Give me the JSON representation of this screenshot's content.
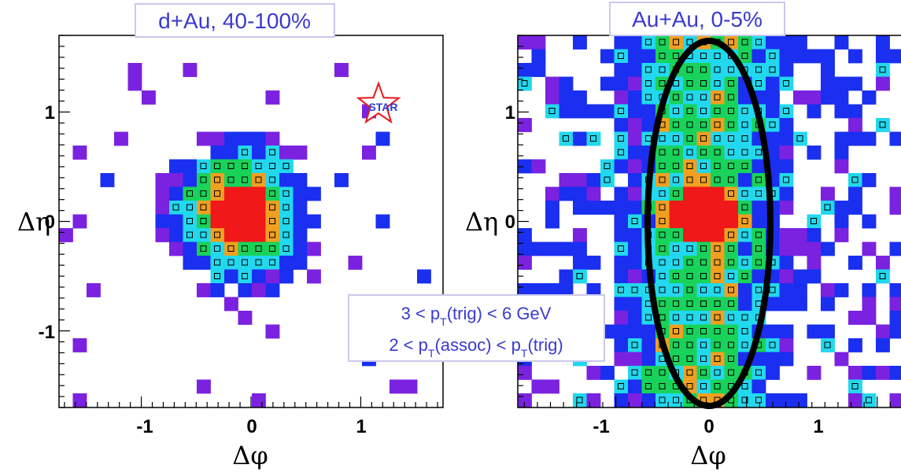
{
  "chart_data": [
    {
      "type": "heatmap",
      "title": "d+Au, 40-100%",
      "xlabel": "Δφ",
      "ylabel": "Δη",
      "xlim": [
        -1.75,
        1.75
      ],
      "ylim": [
        -1.7,
        1.7
      ],
      "xticks": [
        "-1",
        "0",
        "1"
      ],
      "yticks": [
        "-1",
        "0",
        "1"
      ],
      "logo": "STAR",
      "colors": [
        "#7a22e0",
        "#1a2ff0",
        "#22d8ee",
        "#19d25a",
        "#f0a020",
        "#f01818"
      ]
    },
    {
      "type": "heatmap",
      "title": "Au+Au, 0-5%",
      "xlabel": "Δφ",
      "ylabel": "Δη",
      "xlim": [
        -1.75,
        1.2
      ],
      "ylim": [
        -1.7,
        1.7
      ],
      "xticks": [
        "-1",
        "0",
        "1"
      ],
      "yticks": [
        "1",
        "0",
        "-1"
      ],
      "highlight": "ellipse",
      "colors": [
        "#7a22e0",
        "#1a2ff0",
        "#22d8ee",
        "#19d25a",
        "#f0a020",
        "#f01818"
      ]
    }
  ],
  "cuts": {
    "line1": "3 < pT(trig) < 6 GeV",
    "line2": "2 < pT(assoc) < pT(trig)"
  }
}
